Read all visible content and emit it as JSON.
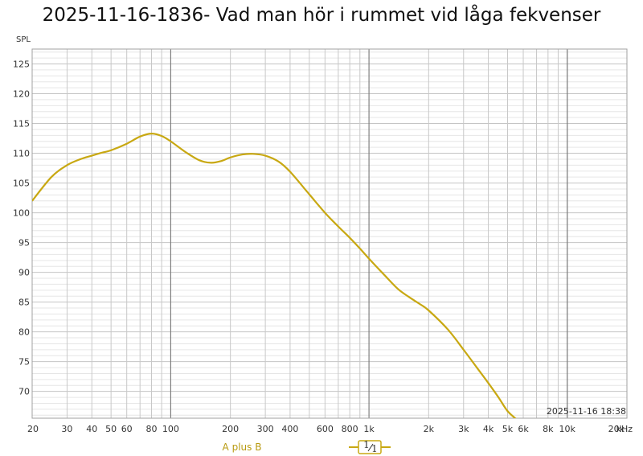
{
  "chart_data": {
    "type": "line",
    "title": "2025-11-16-1836- Vad man hör i rummet vid låga fekvenser",
    "ylabel": "SPL",
    "xlabel": "",
    "x_unit_label": "kHz",
    "xscale": "log",
    "xlim": [
      20,
      20000
    ],
    "ylim": [
      65.5,
      127.5
    ],
    "y_ticks": [
      70,
      75,
      80,
      85,
      90,
      95,
      100,
      105,
      110,
      115,
      120,
      125
    ],
    "x_ticks": [
      {
        "value": 20,
        "label": "20"
      },
      {
        "value": 30,
        "label": "30"
      },
      {
        "value": 40,
        "label": "40"
      },
      {
        "value": 50,
        "label": "50"
      },
      {
        "value": 60,
        "label": "60"
      },
      {
        "value": 80,
        "label": "80"
      },
      {
        "value": 100,
        "label": "100"
      },
      {
        "value": 200,
        "label": "200"
      },
      {
        "value": 300,
        "label": "300"
      },
      {
        "value": 400,
        "label": "400"
      },
      {
        "value": 600,
        "label": "600"
      },
      {
        "value": 800,
        "label": "800"
      },
      {
        "value": 1000,
        "label": "1k"
      },
      {
        "value": 2000,
        "label": "2k"
      },
      {
        "value": 3000,
        "label": "3k"
      },
      {
        "value": 4000,
        "label": "4k"
      },
      {
        "value": 5000,
        "label": "5k"
      },
      {
        "value": 6000,
        "label": "6k"
      },
      {
        "value": 8000,
        "label": "8k"
      },
      {
        "value": 10000,
        "label": "10k"
      },
      {
        "value": 20000,
        "label": "20k"
      }
    ],
    "grid": true,
    "timestamp": "2025-11-16 18:38",
    "legend_position": "bottom",
    "series": [
      {
        "name": "A plus B",
        "color": "#c8a812",
        "x": [
          20,
          25,
          30,
          35,
          40,
          45,
          50,
          60,
          70,
          80,
          90,
          100,
          120,
          140,
          160,
          180,
          200,
          230,
          260,
          300,
          350,
          400,
          500,
          600,
          700,
          800,
          900,
          1000,
          1200,
          1400,
          1600,
          1800,
          2000,
          2500,
          3000,
          3500,
          4000,
          4500,
          5000,
          5600
        ],
        "values": [
          102,
          106,
          108,
          109,
          109.6,
          110.1,
          110.5,
          111.6,
          112.8,
          113.3,
          112.9,
          112,
          110.1,
          108.8,
          108.4,
          108.7,
          109.3,
          109.8,
          109.9,
          109.6,
          108.6,
          106.9,
          103.1,
          100,
          97.7,
          95.8,
          94,
          92.3,
          89.5,
          87.2,
          85.8,
          84.7,
          83.6,
          80.4,
          77,
          74,
          71.4,
          69,
          66.7,
          65.2
        ]
      }
    ]
  },
  "smoothing": {
    "numerator": "1",
    "denominator": "1",
    "color": "#c8a812"
  }
}
